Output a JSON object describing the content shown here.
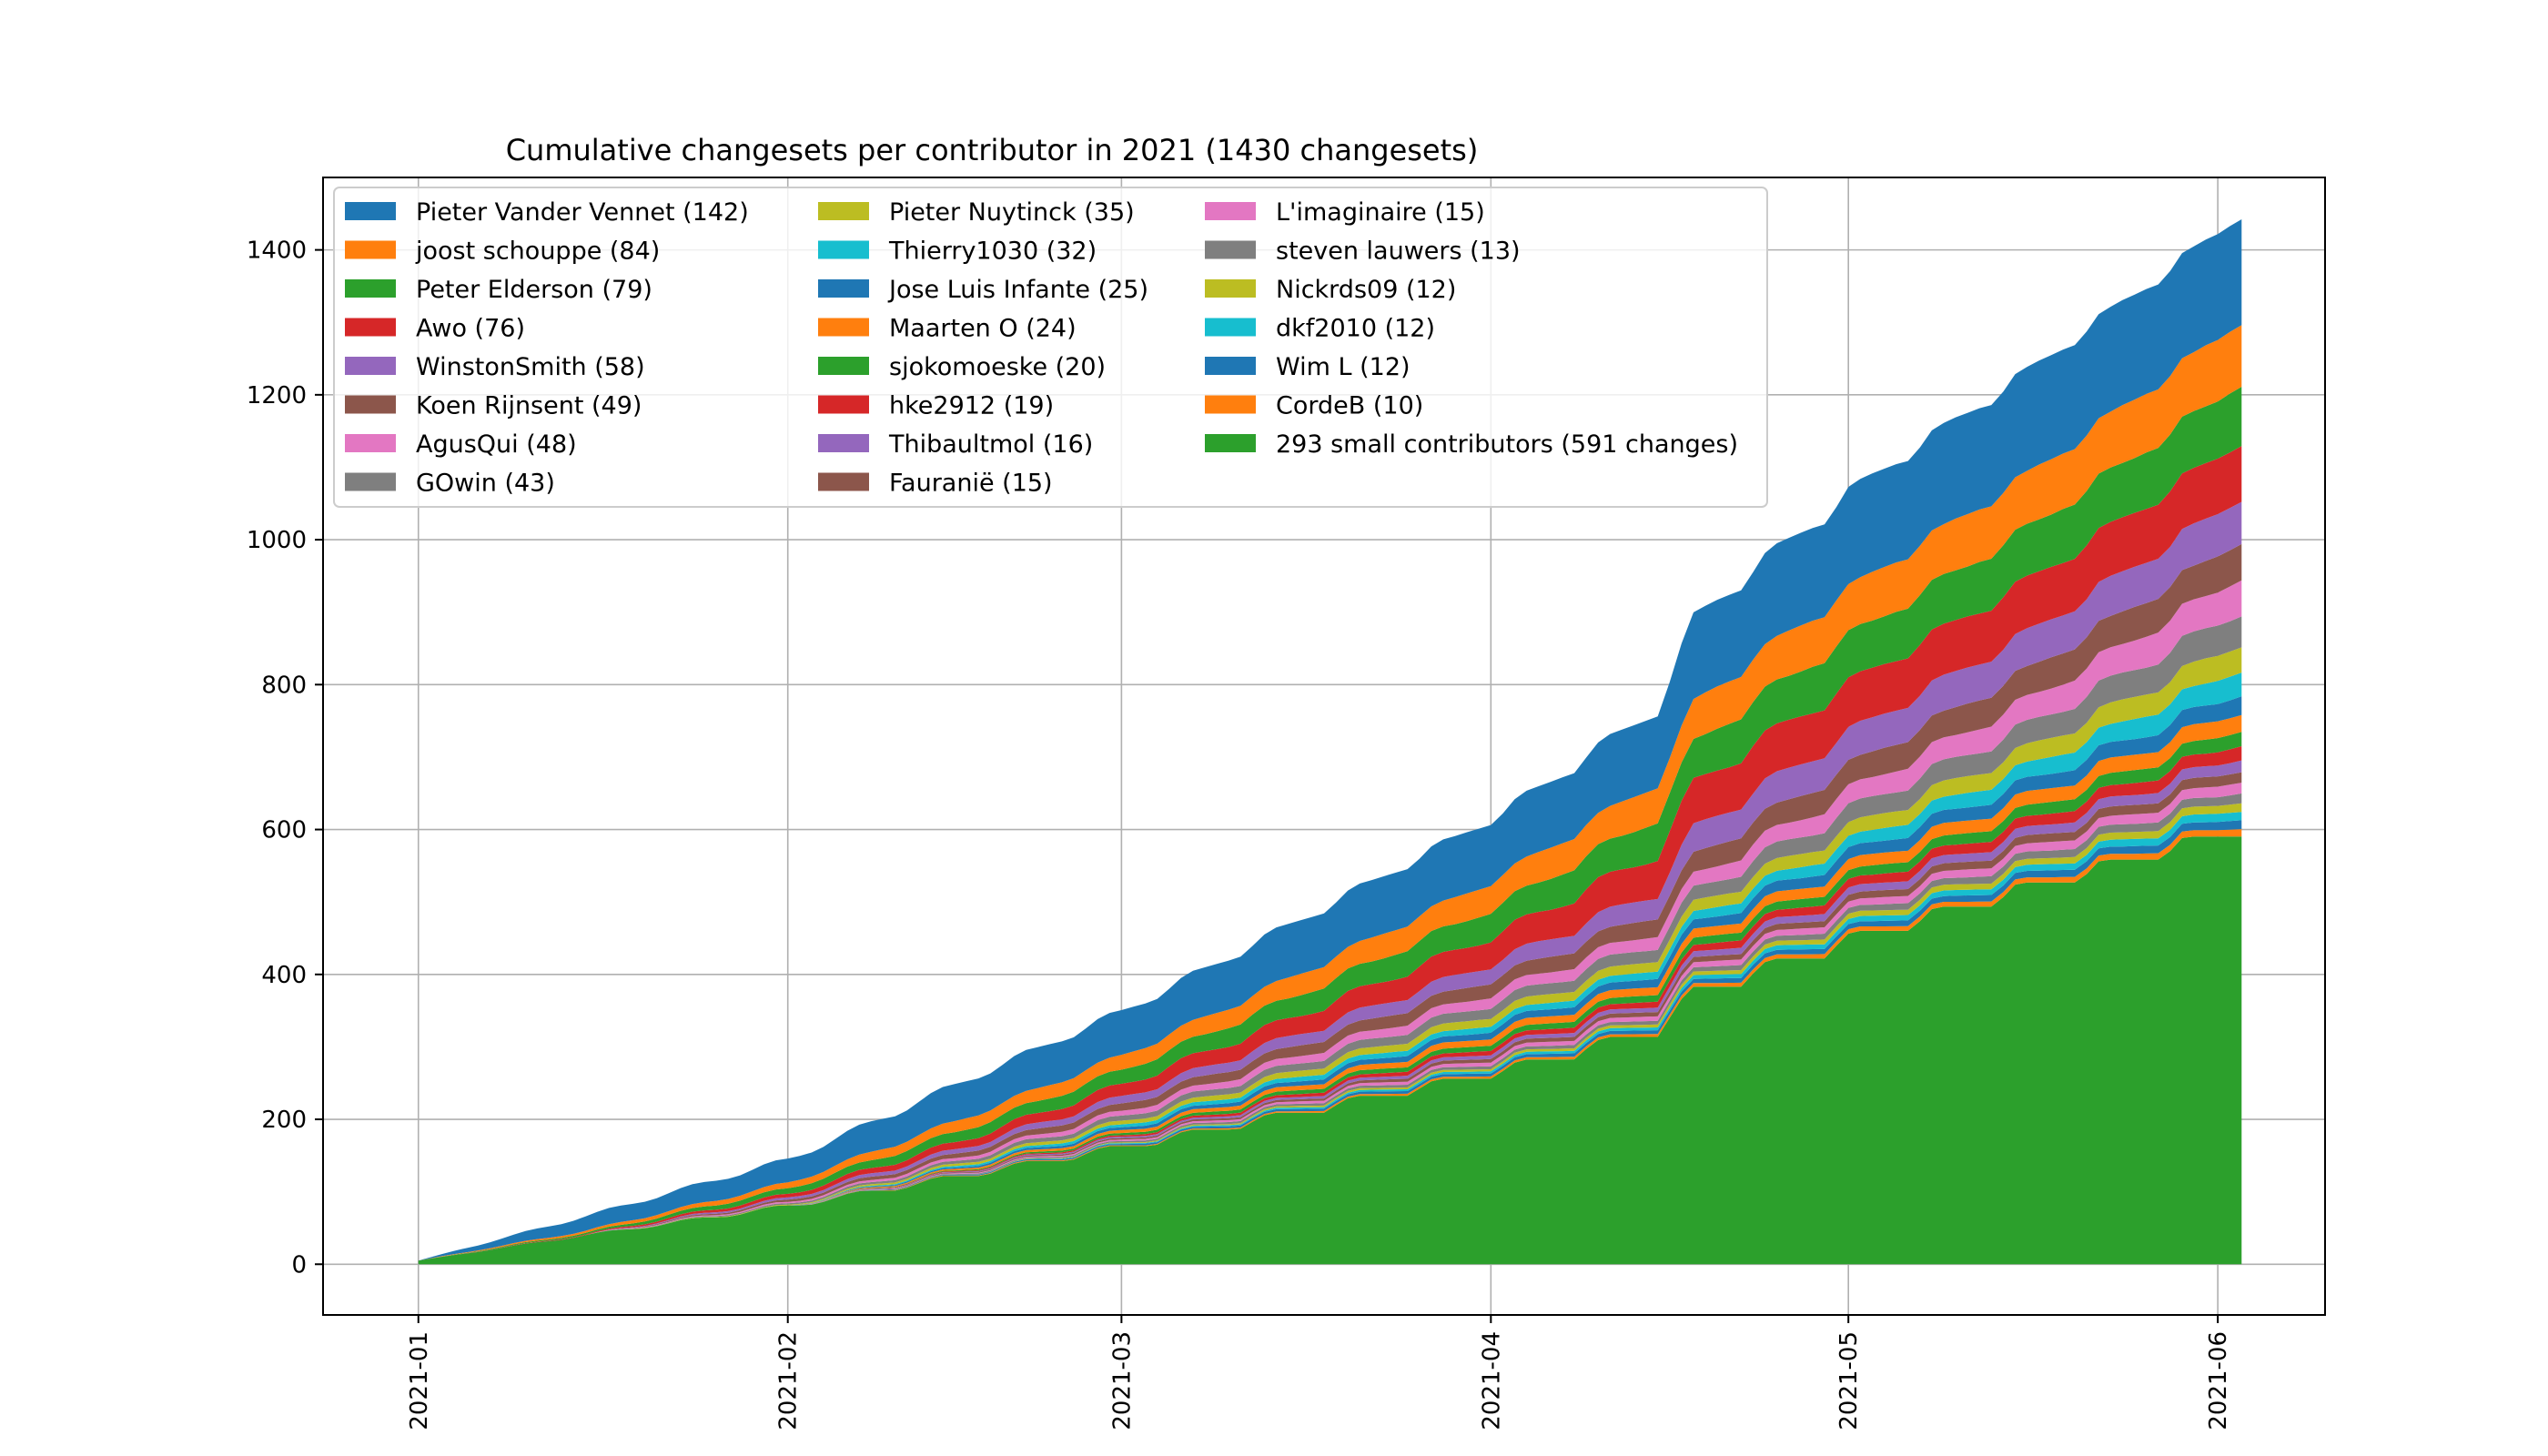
{
  "chart_data": {
    "type": "area",
    "title": "Cumulative changesets per contributor in 2021 (1430 changesets)",
    "xlabel": "",
    "ylabel": "",
    "x_ticks": [
      "2021-01",
      "2021-02",
      "2021-03",
      "2021-04",
      "2021-05",
      "2021-06"
    ],
    "y_ticks": [
      "0",
      "200",
      "400",
      "600",
      "800",
      "1000",
      "1200",
      "1400"
    ],
    "ylim": [
      -70,
      1500
    ],
    "xlim": [
      "2020-12-24",
      "2021-06-10"
    ],
    "grid": true,
    "legend_position": "upper-left",
    "legend_columns": 3,
    "x": [
      "2021-01-01",
      "2021-01-15",
      "2021-02-01",
      "2021-02-15",
      "2021-03-01",
      "2021-03-15",
      "2021-04-01",
      "2021-04-15",
      "2021-04-18",
      "2021-05-01",
      "2021-05-15",
      "2021-06-01",
      "2021-06-03"
    ],
    "series": [
      {
        "name": "293 small contributors (591 changes)",
        "color": "#2ca02c",
        "values": [
          5,
          40,
          80,
          120,
          160,
          205,
          260,
          320,
          370,
          440,
          505,
          580,
          591
        ]
      },
      {
        "name": "CordeB (10)",
        "color": "#ff7f0e",
        "values": [
          0,
          0,
          0,
          1,
          1,
          2,
          3,
          4,
          5,
          6,
          7,
          9,
          10
        ]
      },
      {
        "name": "Wim L (12)",
        "color": "#1f77b4",
        "values": [
          0,
          0,
          0,
          1,
          2,
          3,
          4,
          5,
          6,
          7,
          9,
          11,
          12
        ]
      },
      {
        "name": "dkf2010 (12)",
        "color": "#17becf",
        "values": [
          0,
          0,
          0,
          0,
          1,
          2,
          3,
          4,
          5,
          7,
          8,
          11,
          12
        ]
      },
      {
        "name": "Nickrds09 (12)",
        "color": "#bcbd22",
        "values": [
          0,
          0,
          0,
          0,
          1,
          2,
          3,
          4,
          5,
          7,
          8,
          11,
          12
        ]
      },
      {
        "name": "steven lauwers (13)",
        "color": "#7f7f7f",
        "values": [
          0,
          0,
          0,
          1,
          2,
          3,
          4,
          5,
          6,
          8,
          10,
          12,
          13
        ]
      },
      {
        "name": "L'imaginaire (15)",
        "color": "#e377c2",
        "values": [
          0,
          0,
          0,
          1,
          2,
          3,
          5,
          6,
          7,
          9,
          11,
          14,
          15
        ]
      },
      {
        "name": "Fauranië (15)",
        "color": "#8c564b",
        "values": [
          0,
          0,
          0,
          1,
          2,
          3,
          5,
          6,
          7,
          9,
          11,
          14,
          15
        ]
      },
      {
        "name": "Thibaultmol (16)",
        "color": "#9467bd",
        "values": [
          0,
          0,
          0,
          1,
          2,
          3,
          5,
          6,
          8,
          10,
          12,
          15,
          16
        ]
      },
      {
        "name": "hke2912 (19)",
        "color": "#d62728",
        "values": [
          0,
          0,
          0,
          1,
          2,
          4,
          6,
          8,
          9,
          12,
          14,
          18,
          19
        ]
      },
      {
        "name": "sjokomoeske (20)",
        "color": "#2ca02c",
        "values": [
          0,
          0,
          0,
          1,
          3,
          5,
          7,
          9,
          10,
          12,
          15,
          19,
          20
        ]
      },
      {
        "name": "Maarten O (24)",
        "color": "#ff7f0e",
        "values": [
          0,
          0,
          0,
          2,
          4,
          6,
          9,
          11,
          12,
          15,
          18,
          23,
          24
        ]
      },
      {
        "name": "Jose Luis Infante (25)",
        "color": "#1f77b4",
        "values": [
          0,
          0,
          0,
          2,
          4,
          6,
          9,
          11,
          13,
          16,
          19,
          24,
          25
        ]
      },
      {
        "name": "Thierry1030 (32)",
        "color": "#17becf",
        "values": [
          0,
          0,
          0,
          2,
          4,
          6,
          8,
          10,
          12,
          16,
          21,
          31,
          32
        ]
      },
      {
        "name": "Pieter Nuytinck (35)",
        "color": "#bcbd22",
        "values": [
          0,
          0,
          1,
          3,
          5,
          8,
          11,
          13,
          15,
          19,
          24,
          34,
          35
        ]
      },
      {
        "name": "GOwin (43)",
        "color": "#7f7f7f",
        "values": [
          0,
          0,
          2,
          4,
          7,
          10,
          14,
          17,
          19,
          25,
          31,
          42,
          43
        ]
      },
      {
        "name": "AgusQui (48)",
        "color": "#e377c2",
        "values": [
          0,
          0,
          2,
          4,
          7,
          10,
          14,
          17,
          20,
          26,
          34,
          46,
          48
        ]
      },
      {
        "name": "Koen Rijnsent (49)",
        "color": "#8c564b",
        "values": [
          0,
          0,
          3,
          6,
          10,
          14,
          19,
          24,
          28,
          34,
          40,
          48,
          49
        ]
      },
      {
        "name": "WinstonSmith (58)",
        "color": "#9467bd",
        "values": [
          0,
          0,
          3,
          6,
          10,
          15,
          21,
          29,
          38,
          45,
          50,
          57,
          58
        ]
      },
      {
        "name": "Awo (76)",
        "color": "#d62728",
        "values": [
          0,
          1,
          5,
          10,
          17,
          25,
          37,
          52,
          62,
          66,
          70,
          75,
          76
        ]
      },
      {
        "name": "Peter Elderson (79)",
        "color": "#2ca02c",
        "values": [
          0,
          2,
          8,
          14,
          20,
          28,
          38,
          50,
          56,
          64,
          70,
          78,
          79
        ]
      },
      {
        "name": "joost schouppe (84)",
        "color": "#ff7f0e",
        "values": [
          0,
          3,
          8,
          15,
          20,
          28,
          38,
          48,
          55,
          64,
          72,
          82,
          84
        ]
      },
      {
        "name": "Pieter Vander Vennet (142)",
        "color": "#1f77b4",
        "values": [
          0,
          20,
          32,
          50,
          60,
          72,
          84,
          100,
          115,
          130,
          138,
          141,
          142
        ]
      }
    ]
  }
}
